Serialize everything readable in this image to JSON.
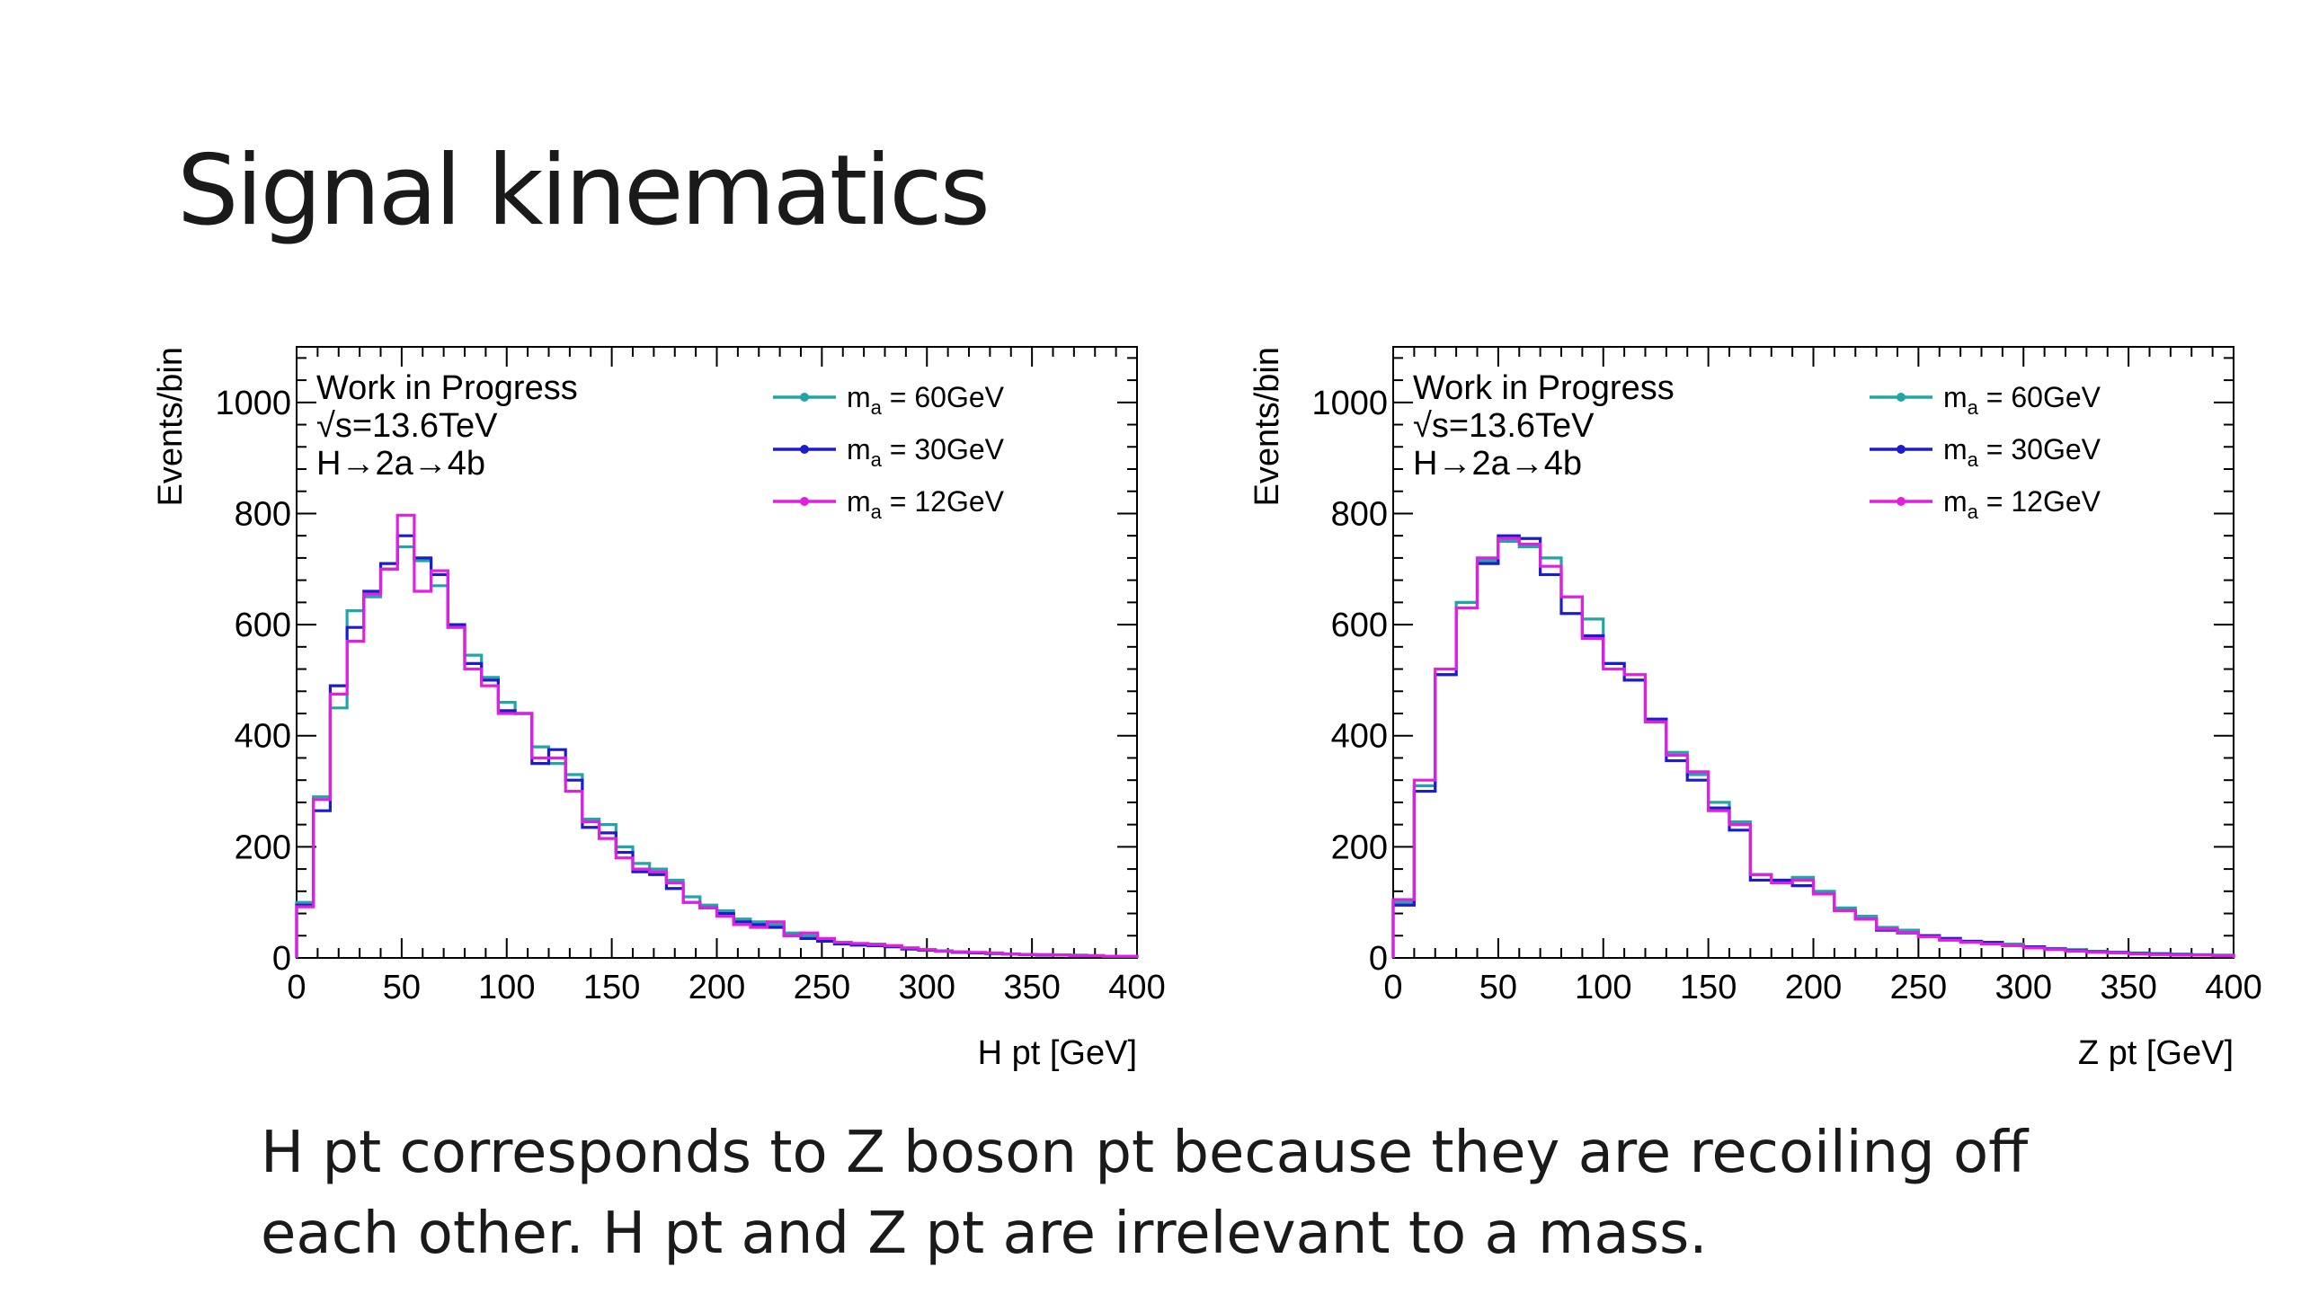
{
  "slide": {
    "title": "Signal kinematics",
    "caption_lines": [
      "H pt corresponds to Z boson pt because they are recoiling off",
      "each other. H pt and Z pt are irrelevant to a mass."
    ]
  },
  "colors": {
    "m60": "#20a6a6",
    "m30": "#1c1ccf",
    "m12": "#e01fe0"
  },
  "chart_data": [
    {
      "type": "line",
      "style": "step histogram",
      "xlabel": "H pt [GeV]",
      "ylabel": "Events/bin",
      "xlim": [
        0,
        400
      ],
      "ylim": [
        0,
        1100
      ],
      "xticks": [
        0,
        50,
        100,
        150,
        200,
        250,
        300,
        350,
        400
      ],
      "yticks": [
        0,
        200,
        400,
        600,
        800,
        1000
      ],
      "annotations": [
        "Work in Progress",
        "√s=13.6TeV",
        "H→2a→4b"
      ],
      "legend_position": "top-right",
      "bin_width": 8,
      "series": [
        {
          "name_main": "m",
          "name_sub": "a",
          "name_rest": " = 60GeV",
          "color": "#20a6a6",
          "values": [
            100,
            290,
            450,
            625,
            650,
            700,
            740,
            715,
            670,
            595,
            545,
            505,
            460,
            440,
            380,
            350,
            330,
            250,
            240,
            200,
            170,
            160,
            140,
            110,
            95,
            85,
            70,
            65,
            60,
            45,
            40,
            32,
            28,
            26,
            25,
            22,
            18,
            15,
            13,
            11,
            9,
            8,
            7,
            6,
            6,
            5,
            5,
            4,
            3,
            3
          ]
        },
        {
          "name_main": "m",
          "name_sub": "a",
          "name_rest": " = 30GeV",
          "color": "#1c1ccf",
          "values": [
            95,
            265,
            490,
            595,
            660,
            710,
            760,
            720,
            690,
            600,
            530,
            500,
            445,
            440,
            350,
            375,
            320,
            235,
            225,
            190,
            155,
            150,
            125,
            100,
            90,
            80,
            65,
            60,
            55,
            40,
            35,
            30,
            25,
            23,
            22,
            20,
            16,
            14,
            12,
            10,
            9,
            8,
            7,
            6,
            5,
            5,
            4,
            4,
            3,
            3
          ]
        },
        {
          "name_main": "m",
          "name_sub": "a",
          "name_rest": " = 12GeV",
          "color": "#e01fe0",
          "values": [
            92,
            285,
            475,
            570,
            655,
            700,
            797,
            660,
            697,
            595,
            520,
            490,
            440,
            440,
            360,
            360,
            300,
            245,
            215,
            180,
            160,
            155,
            135,
            100,
            90,
            75,
            60,
            55,
            65,
            40,
            45,
            35,
            28,
            26,
            24,
            22,
            18,
            15,
            12,
            11,
            10,
            9,
            7,
            6,
            6,
            5,
            4,
            4,
            3,
            3
          ]
        }
      ]
    },
    {
      "type": "line",
      "style": "step histogram",
      "xlabel": "Z pt [GeV]",
      "ylabel": "Events/bin",
      "xlim": [
        0,
        400
      ],
      "ylim": [
        0,
        1100
      ],
      "xticks": [
        0,
        50,
        100,
        150,
        200,
        250,
        300,
        350,
        400
      ],
      "yticks": [
        0,
        200,
        400,
        600,
        800,
        1000
      ],
      "annotations": [
        "Work in Progress",
        "√s=13.6TeV",
        "H→2a→4b"
      ],
      "legend_position": "top-right",
      "bin_width": 10,
      "series": [
        {
          "name_main": "m",
          "name_sub": "a",
          "name_rest": " = 60GeV",
          "color": "#20a6a6",
          "values": [
            100,
            310,
            510,
            640,
            715,
            750,
            740,
            720,
            650,
            610,
            530,
            500,
            425,
            370,
            330,
            280,
            245,
            150,
            140,
            145,
            120,
            90,
            75,
            55,
            50,
            40,
            35,
            30,
            28,
            25,
            20,
            17,
            15,
            12,
            10,
            9,
            8,
            7,
            6,
            5
          ]
        },
        {
          "name_main": "m",
          "name_sub": "a",
          "name_rest": " = 30GeV",
          "color": "#1c1ccf",
          "values": [
            95,
            300,
            510,
            630,
            710,
            760,
            755,
            690,
            620,
            580,
            530,
            500,
            430,
            355,
            320,
            270,
            230,
            140,
            140,
            130,
            115,
            85,
            70,
            50,
            45,
            40,
            35,
            30,
            28,
            22,
            20,
            16,
            13,
            11,
            10,
            8,
            7,
            6,
            5,
            4
          ]
        },
        {
          "name_main": "m",
          "name_sub": "a",
          "name_rest": " = 12GeV",
          "color": "#e01fe0",
          "values": [
            105,
            320,
            520,
            630,
            720,
            755,
            745,
            705,
            650,
            575,
            520,
            510,
            425,
            365,
            335,
            265,
            240,
            150,
            135,
            140,
            115,
            85,
            70,
            52,
            46,
            38,
            32,
            28,
            25,
            22,
            18,
            15,
            12,
            10,
            9,
            7,
            6,
            5,
            5,
            4
          ]
        }
      ]
    }
  ]
}
